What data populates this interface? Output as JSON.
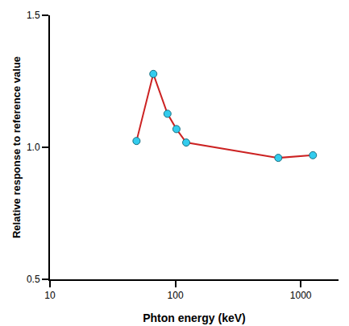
{
  "chart_data": {
    "type": "line",
    "x_label": "Phton energy (keV)",
    "y_label": "Relative response to reference value",
    "x": [
      49,
      66.7,
      86.5,
      102,
      122,
      662,
      1250
    ],
    "values": [
      1.024,
      1.278,
      1.127,
      1.069,
      1.018,
      0.96,
      0.97
    ],
    "color": "#cc2222",
    "marker": "circle",
    "log": "x",
    "xlim": [
      10,
      2000
    ],
    "xticks": [
      10,
      100,
      1000
    ],
    "ylim": [
      0.5,
      1.5
    ],
    "yticks": [
      {
        "value": 0.5,
        "label": "0.5"
      },
      {
        "value": 1,
        "label": "1.0"
      },
      {
        "value": 1.5,
        "label": "1.5"
      }
    ],
    "grid": false
  }
}
